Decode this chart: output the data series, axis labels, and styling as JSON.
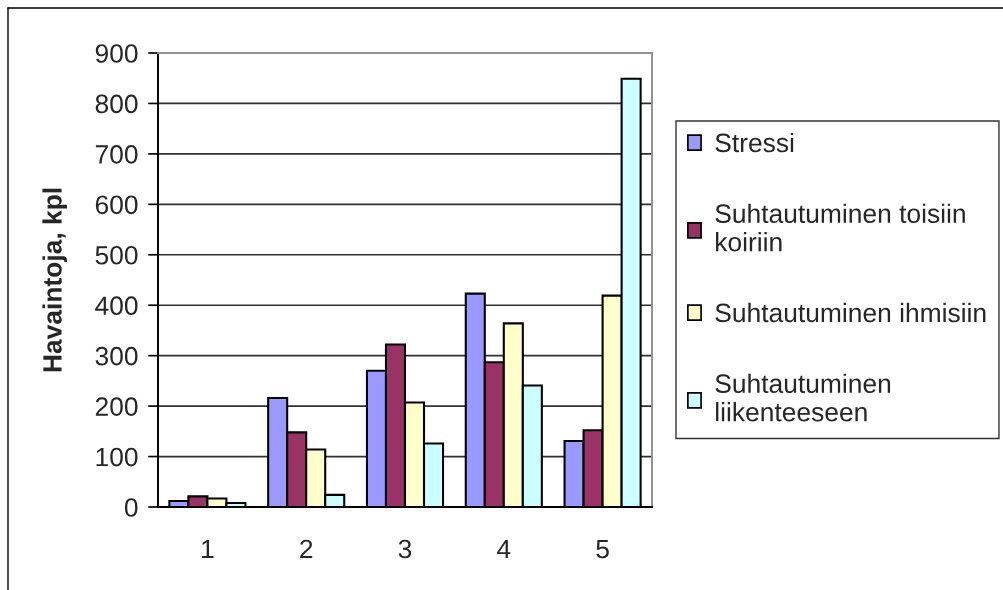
{
  "chart_data": {
    "type": "bar",
    "ylabel": "Havaintoja, kpl",
    "categories": [
      "1",
      "2",
      "3",
      "4",
      "5"
    ],
    "series": [
      {
        "name": "Stressi",
        "color": "#9999ff",
        "values": [
          12,
          216,
          270,
          423,
          131
        ]
      },
      {
        "name": "Suhtautuminen toisiin koiriin",
        "color": "#993366",
        "values": [
          21,
          148,
          322,
          287,
          152
        ]
      },
      {
        "name": "Suhtautuminen ihmisiin",
        "color": "#ffffcc",
        "values": [
          17,
          114,
          207,
          364,
          419
        ]
      },
      {
        "name": "Suhtautuminen liikenteeseen",
        "color": "#ccffff",
        "values": [
          8,
          24,
          126,
          241,
          849
        ]
      }
    ],
    "ylim": [
      0,
      900
    ],
    "yticks": [
      0,
      100,
      200,
      300,
      400,
      500,
      600,
      700,
      800,
      900
    ],
    "grid": "y",
    "legend": "right"
  }
}
